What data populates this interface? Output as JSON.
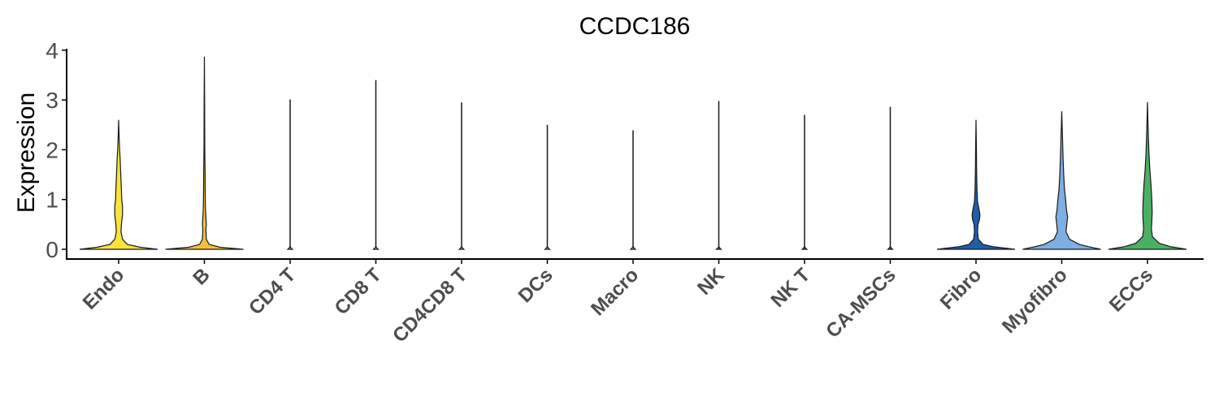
{
  "chart_data": {
    "type": "violin",
    "title": "CCDC186",
    "xlabel": "",
    "ylabel": "Expression",
    "ylim": [
      0,
      4
    ],
    "yticks": [
      "0",
      "1",
      "2",
      "3",
      "4"
    ],
    "grid": false,
    "legend": "none",
    "categories": [
      "Endo",
      "B",
      "CD4 T",
      "CD8 T",
      "CD4CD8 T",
      "DCs",
      "Macro",
      "NK",
      "NK T",
      "CA-MSCs",
      "Fibro",
      "Myofibro",
      "ECCs"
    ],
    "max_values": [
      2.6,
      3.87,
      3.01,
      3.4,
      2.95,
      2.5,
      2.39,
      2.98,
      2.7,
      2.86,
      2.6,
      2.77,
      2.96
    ],
    "colors": [
      "#F7E43C",
      "#F2C13A",
      "#F2C13A",
      "#F2C13A",
      "#F2C13A",
      "#F2C13A",
      "#F2C13A",
      "#2E6FB5",
      "#2E6FB5",
      "#2E6FB5",
      "#1F5FA8",
      "#7FAEE0",
      "#4CAF65"
    ],
    "density_profiles": [
      [
        [
          0,
          1
        ],
        [
          0.04,
          0.55
        ],
        [
          0.1,
          0.22
        ],
        [
          0.2,
          0.1
        ],
        [
          0.35,
          0.06
        ],
        [
          0.5,
          0.07
        ],
        [
          0.7,
          0.1
        ],
        [
          0.85,
          0.1
        ],
        [
          1.0,
          0.08
        ],
        [
          1.2,
          0.07
        ],
        [
          1.5,
          0.055
        ],
        [
          1.8,
          0.04
        ],
        [
          2.0,
          0.025
        ],
        [
          2.3,
          0.01
        ],
        [
          2.6,
          0.0
        ]
      ],
      [
        [
          0,
          1
        ],
        [
          0.04,
          0.4
        ],
        [
          0.1,
          0.12
        ],
        [
          0.2,
          0.05
        ],
        [
          0.4,
          0.04
        ],
        [
          0.5,
          0.05
        ],
        [
          0.7,
          0.035
        ],
        [
          0.9,
          0.025
        ],
        [
          1.2,
          0.02
        ],
        [
          1.5,
          0.018
        ],
        [
          2.0,
          0.01
        ],
        [
          3.0,
          0.006
        ],
        [
          3.87,
          0.0
        ]
      ],
      [
        [
          0,
          0.06
        ],
        [
          0.03,
          0.02
        ],
        [
          0.06,
          0.0
        ]
      ],
      [
        [
          0,
          0.06
        ],
        [
          0.03,
          0.02
        ],
        [
          0.06,
          0.0
        ]
      ],
      [
        [
          0,
          0.06
        ],
        [
          0.03,
          0.02
        ],
        [
          0.06,
          0.0
        ]
      ],
      [
        [
          0,
          0.06
        ],
        [
          0.03,
          0.02
        ],
        [
          0.06,
          0.0
        ]
      ],
      [
        [
          0,
          0.06
        ],
        [
          0.03,
          0.02
        ],
        [
          0.06,
          0.0
        ]
      ],
      [
        [
          0,
          0.06
        ],
        [
          0.03,
          0.02
        ],
        [
          0.06,
          0.0
        ]
      ],
      [
        [
          0,
          0.06
        ],
        [
          0.03,
          0.02
        ],
        [
          0.06,
          0.0
        ]
      ],
      [
        [
          0,
          0.06
        ],
        [
          0.03,
          0.02
        ],
        [
          0.06,
          0.0
        ]
      ],
      [
        [
          0,
          1
        ],
        [
          0.05,
          0.45
        ],
        [
          0.1,
          0.18
        ],
        [
          0.2,
          0.06
        ],
        [
          0.35,
          0.04
        ],
        [
          0.5,
          0.05
        ],
        [
          0.6,
          0.09
        ],
        [
          0.7,
          0.1
        ],
        [
          0.8,
          0.08
        ],
        [
          0.95,
          0.04
        ],
        [
          1.2,
          0.025
        ],
        [
          1.6,
          0.015
        ],
        [
          2.0,
          0.01
        ],
        [
          2.6,
          0.0
        ]
      ],
      [
        [
          0,
          1
        ],
        [
          0.05,
          0.7
        ],
        [
          0.1,
          0.45
        ],
        [
          0.2,
          0.2
        ],
        [
          0.35,
          0.11
        ],
        [
          0.5,
          0.13
        ],
        [
          0.65,
          0.15
        ],
        [
          0.8,
          0.12
        ],
        [
          1.0,
          0.1
        ],
        [
          1.2,
          0.07
        ],
        [
          1.5,
          0.05
        ],
        [
          1.8,
          0.035
        ],
        [
          2.2,
          0.02
        ],
        [
          2.77,
          0.0
        ]
      ],
      [
        [
          0,
          1
        ],
        [
          0.05,
          0.6
        ],
        [
          0.12,
          0.3
        ],
        [
          0.25,
          0.13
        ],
        [
          0.4,
          0.1
        ],
        [
          0.55,
          0.11
        ],
        [
          0.75,
          0.12
        ],
        [
          1.0,
          0.11
        ],
        [
          1.3,
          0.09
        ],
        [
          1.6,
          0.06
        ],
        [
          1.9,
          0.04
        ],
        [
          2.3,
          0.02
        ],
        [
          2.96,
          0.0
        ]
      ]
    ]
  }
}
